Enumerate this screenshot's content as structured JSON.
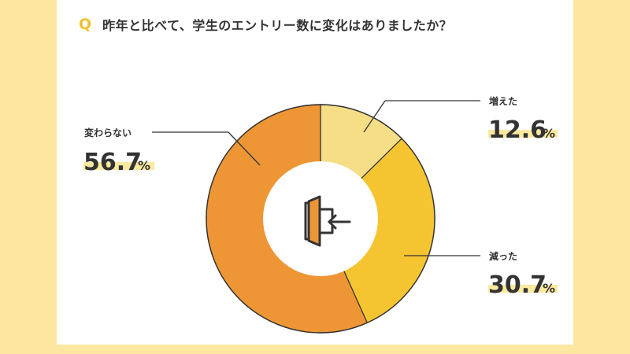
{
  "question": {
    "mark": "Q",
    "text": "昨年と比べて、学生のエントリー数に変化はありましたか？"
  },
  "icon": "entry-door-icon",
  "colors": {
    "background": "#fde7a0",
    "increased": "#f5de86",
    "decreased": "#f5c431",
    "unchanged": "#ee9636",
    "highlight": "#fbe9a0",
    "leader": "#333333"
  },
  "chart_data": {
    "type": "pie",
    "donut": true,
    "title": "",
    "unit": "%",
    "slices": [
      {
        "label": "増えた",
        "value": 12.6,
        "display": "12.6"
      },
      {
        "label": "減った",
        "value": 30.7,
        "display": "30.7"
      },
      {
        "label": "変わらない",
        "value": 56.7,
        "display": "56.7"
      }
    ]
  }
}
